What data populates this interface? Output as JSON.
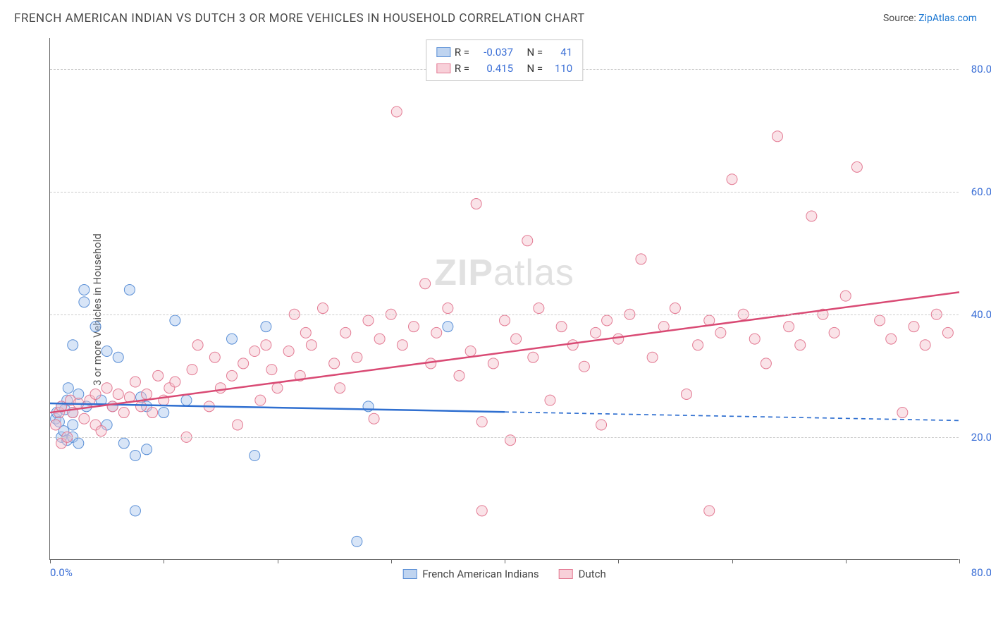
{
  "title": "FRENCH AMERICAN INDIAN VS DUTCH 3 OR MORE VEHICLES IN HOUSEHOLD CORRELATION CHART",
  "source_label": "Source:",
  "source_name": "ZipAtlas.com",
  "y_axis_label": "3 or more Vehicles in Household",
  "watermark": {
    "prefix": "ZIP",
    "suffix": "atlas"
  },
  "chart": {
    "type": "scatter",
    "xlim": [
      0,
      80
    ],
    "ylim": [
      0,
      85
    ],
    "x_ticks": [
      0,
      10,
      20,
      30,
      40,
      50,
      60,
      70,
      80
    ],
    "y_gridlines": [
      20,
      40,
      60,
      80
    ],
    "x_tick_labels": {
      "start": "0.0%",
      "end": "80.0%"
    },
    "y_tick_labels": [
      "20.0%",
      "40.0%",
      "60.0%",
      "80.0%"
    ],
    "background_color": "#ffffff",
    "grid_color": "#cccccc",
    "axis_color": "#666666",
    "tick_label_color": "#3b6fd6",
    "marker_radius": 7.5,
    "marker_opacity": 0.45,
    "series": [
      {
        "name": "French American Indians",
        "color_fill": "#a8c6ed",
        "color_stroke": "#5a8fd6",
        "swatch_fill": "#bfd4f0",
        "swatch_border": "#5a8fd6",
        "R": "-0.037",
        "N": "41",
        "trend": {
          "y_intercept": 25.5,
          "slope": -0.035,
          "solid_until_x": 40,
          "color": "#2f6fd0",
          "width": 2.5
        },
        "points": [
          [
            0.5,
            23
          ],
          [
            0.6,
            24
          ],
          [
            0.8,
            22.5
          ],
          [
            1,
            25
          ],
          [
            1,
            20
          ],
          [
            1.2,
            21
          ],
          [
            1.3,
            24.5
          ],
          [
            1.5,
            19.5
          ],
          [
            1.5,
            26
          ],
          [
            1.6,
            28
          ],
          [
            2,
            24
          ],
          [
            2,
            22
          ],
          [
            2,
            35
          ],
          [
            2,
            20
          ],
          [
            2.5,
            19
          ],
          [
            2.5,
            27
          ],
          [
            3,
            42
          ],
          [
            3,
            44
          ],
          [
            3.2,
            25
          ],
          [
            4,
            38
          ],
          [
            4.5,
            26
          ],
          [
            5,
            34
          ],
          [
            5,
            22
          ],
          [
            5.5,
            25
          ],
          [
            6,
            33
          ],
          [
            6.5,
            19
          ],
          [
            7,
            44
          ],
          [
            7.5,
            17
          ],
          [
            7.5,
            8
          ],
          [
            8,
            26.5
          ],
          [
            8.5,
            18
          ],
          [
            8.5,
            25
          ],
          [
            10,
            24
          ],
          [
            11,
            39
          ],
          [
            12,
            26
          ],
          [
            16,
            36
          ],
          [
            18,
            17
          ],
          [
            19,
            38
          ],
          [
            27,
            3
          ],
          [
            28,
            25
          ],
          [
            35,
            38
          ]
        ]
      },
      {
        "name": "Dutch",
        "color_fill": "#f5c0cb",
        "color_stroke": "#e37a93",
        "swatch_fill": "#f8d0d9",
        "swatch_border": "#e37a93",
        "R": "0.415",
        "N": "110",
        "trend": {
          "y_intercept": 24,
          "slope": 0.245,
          "solid_until_x": 80,
          "color": "#d94a74",
          "width": 2.5
        },
        "points": [
          [
            0.5,
            22
          ],
          [
            0.8,
            24
          ],
          [
            1,
            19
          ],
          [
            1,
            25
          ],
          [
            1.5,
            20
          ],
          [
            1.8,
            26
          ],
          [
            2,
            24
          ],
          [
            2.5,
            25.5
          ],
          [
            3,
            23
          ],
          [
            3.5,
            26
          ],
          [
            4,
            22
          ],
          [
            4,
            27
          ],
          [
            4.5,
            21
          ],
          [
            5,
            28
          ],
          [
            5.5,
            25
          ],
          [
            6,
            27
          ],
          [
            6.5,
            24
          ],
          [
            7,
            26.5
          ],
          [
            7.5,
            29
          ],
          [
            8,
            25
          ],
          [
            8.5,
            27
          ],
          [
            9,
            24
          ],
          [
            9.5,
            30
          ],
          [
            10,
            26
          ],
          [
            10.5,
            28
          ],
          [
            11,
            29
          ],
          [
            12,
            20
          ],
          [
            12.5,
            31
          ],
          [
            13,
            35
          ],
          [
            14,
            25
          ],
          [
            14.5,
            33
          ],
          [
            15,
            28
          ],
          [
            16,
            30
          ],
          [
            16.5,
            22
          ],
          [
            17,
            32
          ],
          [
            18,
            34
          ],
          [
            18.5,
            26
          ],
          [
            19,
            35
          ],
          [
            19.5,
            31
          ],
          [
            20,
            28
          ],
          [
            21,
            34
          ],
          [
            21.5,
            40
          ],
          [
            22,
            30
          ],
          [
            22.5,
            37
          ],
          [
            23,
            35
          ],
          [
            24,
            41
          ],
          [
            25,
            32
          ],
          [
            25.5,
            28
          ],
          [
            26,
            37
          ],
          [
            27,
            33
          ],
          [
            28,
            39
          ],
          [
            28.5,
            23
          ],
          [
            29,
            36
          ],
          [
            30,
            40
          ],
          [
            30.5,
            73
          ],
          [
            31,
            35
          ],
          [
            32,
            38
          ],
          [
            33,
            45
          ],
          [
            33.5,
            32
          ],
          [
            34,
            37
          ],
          [
            35,
            41
          ],
          [
            36,
            30
          ],
          [
            37,
            34
          ],
          [
            37.5,
            58
          ],
          [
            38,
            22.5
          ],
          [
            38,
            8
          ],
          [
            39,
            32
          ],
          [
            40,
            39
          ],
          [
            40.5,
            19.5
          ],
          [
            41,
            36
          ],
          [
            42,
            52
          ],
          [
            42.5,
            33
          ],
          [
            43,
            41
          ],
          [
            44,
            26
          ],
          [
            45,
            38
          ],
          [
            46,
            35
          ],
          [
            47,
            31.5
          ],
          [
            48,
            37
          ],
          [
            48.5,
            22
          ],
          [
            49,
            39
          ],
          [
            50,
            36
          ],
          [
            51,
            40
          ],
          [
            52,
            49
          ],
          [
            53,
            33
          ],
          [
            54,
            38
          ],
          [
            55,
            41
          ],
          [
            56,
            27
          ],
          [
            57,
            35
          ],
          [
            58,
            8
          ],
          [
            58,
            39
          ],
          [
            59,
            37
          ],
          [
            60,
            62
          ],
          [
            61,
            40
          ],
          [
            62,
            36
          ],
          [
            63,
            32
          ],
          [
            64,
            69
          ],
          [
            65,
            38
          ],
          [
            66,
            35
          ],
          [
            67,
            56
          ],
          [
            68,
            40
          ],
          [
            69,
            37
          ],
          [
            70,
            43
          ],
          [
            71,
            64
          ],
          [
            73,
            39
          ],
          [
            74,
            36
          ],
          [
            75,
            24
          ],
          [
            76,
            38
          ],
          [
            77,
            35
          ],
          [
            78,
            40
          ],
          [
            79,
            37
          ]
        ]
      }
    ]
  },
  "legend_top": {
    "R_label": "R =",
    "N_label": "N ="
  },
  "legend_bottom": true
}
